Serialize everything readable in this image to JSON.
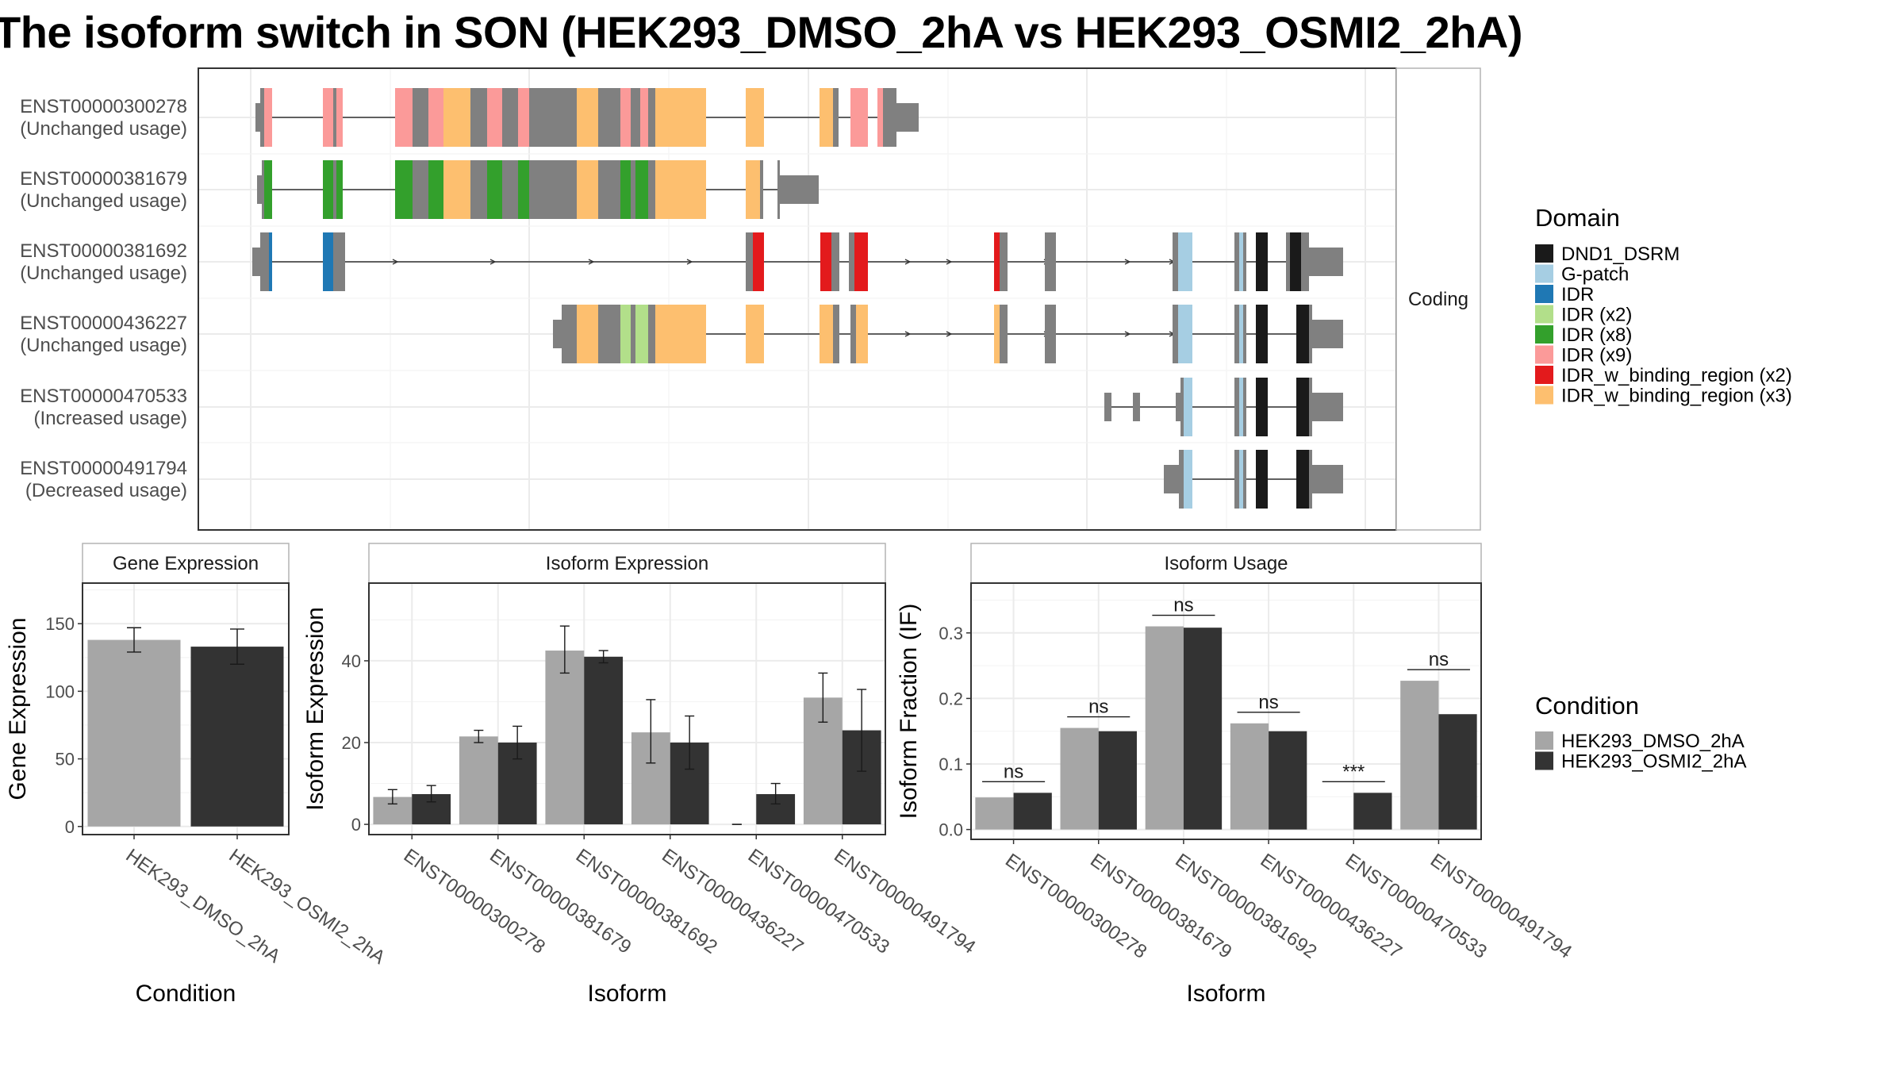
{
  "title": "The isoform switch in SON (HEK293_DMSO_2hA vs HEK293_OSMI2_2hA)",
  "colors": {
    "DND1_DSRM": "#1a1a1a",
    "G-patch": "#a6cee3",
    "IDR": "#1f78b4",
    "IDR (x2)": "#b2df8a",
    "IDR (x8)": "#33a02c",
    "IDR (x9)": "#fb9a99",
    "IDR_w_binding_region (x2)": "#e31a1c",
    "IDR_w_binding_region (x3)": "#fdbf6f",
    "exon": "#808080",
    "dmso": "#a6a6a6",
    "osmi": "#333333"
  },
  "structure": {
    "facet_label": "Coding",
    "isoforms": [
      {
        "id": "ENST00000300278",
        "usage": "(Unchanged usage)"
      },
      {
        "id": "ENST00000381679",
        "usage": "(Unchanged usage)"
      },
      {
        "id": "ENST00000381692",
        "usage": "(Unchanged usage)"
      },
      {
        "id": "ENST00000436227",
        "usage": "(Unchanged usage)"
      },
      {
        "id": "ENST00000470533",
        "usage": "(Increased usage)"
      },
      {
        "id": "ENST00000491794",
        "usage": "(Decreased usage)"
      }
    ]
  },
  "legend_domain": {
    "title": "Domain",
    "items": [
      "DND1_DSRM",
      "G-patch",
      "IDR",
      "IDR (x2)",
      "IDR (x8)",
      "IDR (x9)",
      "IDR_w_binding_region (x2)",
      "IDR_w_binding_region (x3)"
    ]
  },
  "legend_condition": {
    "title": "Condition",
    "items": [
      "HEK293_DMSO_2hA",
      "HEK293_OSMI2_2hA"
    ]
  },
  "chart_data": [
    {
      "type": "bar",
      "title": "Gene Expression",
      "xlabel": "Condition",
      "ylabel": "Gene Expression",
      "categories": [
        "HEK293_DMSO_2hA",
        "HEK293_OSMI2_2hA"
      ],
      "values": [
        138,
        133
      ],
      "errors": [
        [
          129,
          147
        ],
        [
          120,
          146
        ]
      ],
      "ylim": [
        -6,
        180
      ],
      "yticks": [
        0,
        50,
        100,
        150
      ]
    },
    {
      "type": "bar",
      "title": "Isoform Expression",
      "xlabel": "Isoform",
      "ylabel": "Isoform Expression",
      "categories": [
        "ENST00000300278",
        "ENST00000381679",
        "ENST00000381692",
        "ENST00000436227",
        "ENST00000470533",
        "ENST00000491794"
      ],
      "series": [
        {
          "name": "HEK293_DMSO_2hA",
          "values": [
            6.7,
            21.5,
            42.5,
            22.5,
            0.0,
            31.0
          ],
          "errors": [
            [
              5,
              8.5
            ],
            [
              20,
              23
            ],
            [
              37,
              48.5
            ],
            [
              15,
              30.5
            ],
            [
              0,
              0
            ],
            [
              25,
              37
            ]
          ]
        },
        {
          "name": "HEK293_OSMI2_2hA",
          "values": [
            7.4,
            20.0,
            41.0,
            20.0,
            7.4,
            23.0
          ],
          "errors": [
            [
              5.5,
              9.5
            ],
            [
              16,
              24
            ],
            [
              39.5,
              42.5
            ],
            [
              13.5,
              26.5
            ],
            [
              5,
              10
            ],
            [
              13,
              33
            ]
          ]
        }
      ],
      "ylim": [
        -2.5,
        59
      ],
      "yticks": [
        0,
        20,
        40
      ]
    },
    {
      "type": "bar",
      "title": "Isoform Usage",
      "xlabel": "Isoform",
      "ylabel": "Isoform Fraction (IF)",
      "categories": [
        "ENST00000300278",
        "ENST00000381679",
        "ENST00000381692",
        "ENST00000436227",
        "ENST00000470533",
        "ENST00000491794"
      ],
      "series": [
        {
          "name": "HEK293_DMSO_2hA",
          "values": [
            0.049,
            0.155,
            0.31,
            0.162,
            0.0,
            0.227
          ]
        },
        {
          "name": "HEK293_OSMI2_2hA",
          "values": [
            0.056,
            0.15,
            0.308,
            0.15,
            0.056,
            0.176
          ]
        }
      ],
      "significance": [
        "ns",
        "ns",
        "ns",
        "ns",
        "***",
        "ns"
      ],
      "ylim": [
        -0.015,
        0.376
      ],
      "yticks": [
        0.0,
        0.1,
        0.2,
        0.3
      ],
      "ytick_labels": [
        "0.0",
        "0.1",
        "0.2",
        "0.3"
      ]
    }
  ]
}
